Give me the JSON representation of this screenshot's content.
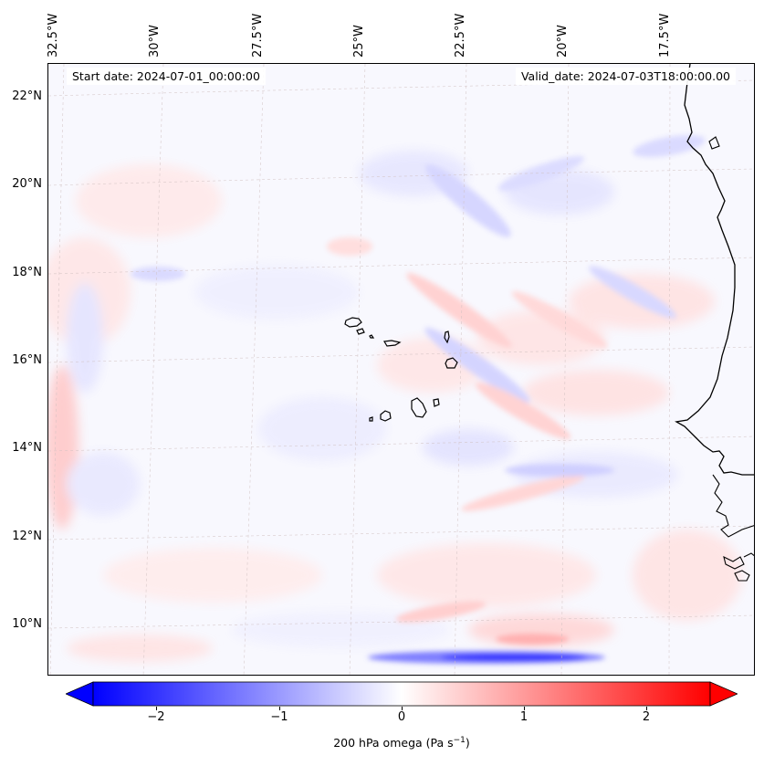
{
  "map": {
    "start_date_label": "Start date: 2024-07-01_00:00:00",
    "valid_date_label": "Valid_date: 2024-07-03T18:00:00.00",
    "longitude_labels": [
      "32.5°W",
      "30°W",
      "27.5°W",
      "25°W",
      "22.5°W",
      "20°W",
      "17.5°W"
    ],
    "latitude_labels": [
      "22°N",
      "20°N",
      "18°N",
      "16°N",
      "14°N",
      "12°N",
      "10°N"
    ],
    "field": "200 hPa omega",
    "features": [
      "Cape Verde islands",
      "West African coastline"
    ]
  },
  "colorbar": {
    "label_prefix": "200 hPa omega (Pa s",
    "label_exp": "−1",
    "label_suffix": ")",
    "ticks": [
      "−2",
      "−1",
      "0",
      "1",
      "2"
    ],
    "range": [
      -2.5,
      2.5
    ],
    "colormap": "bwr",
    "low_color": "#0000ff",
    "mid_color": "#ffffff",
    "high_color": "#ff0000"
  }
}
